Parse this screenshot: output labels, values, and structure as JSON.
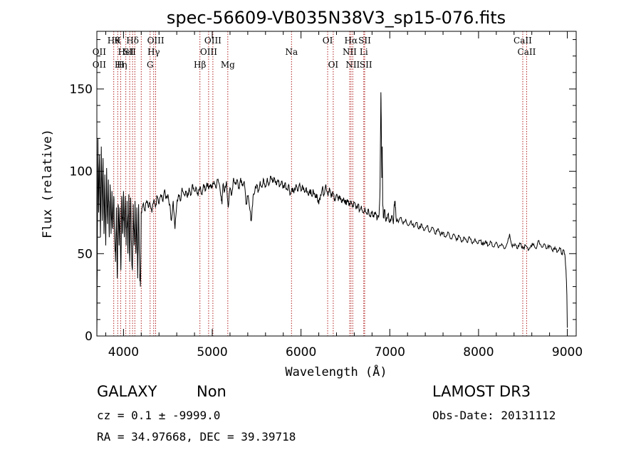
{
  "chart_data": {
    "type": "line",
    "title": "spec-56609-VB035N38V3_sp15-076.fits",
    "xlabel": "Wavelength (Å)",
    "ylabel": "Flux (relative)",
    "xlim": [
      3700,
      9100
    ],
    "ylim": [
      0,
      185
    ],
    "x_ticks": [
      4000,
      5000,
      6000,
      7000,
      8000,
      9000
    ],
    "y_ticks": [
      0,
      50,
      100,
      150
    ],
    "grid": false,
    "colors": {
      "spectrum": "#000000",
      "lines": "#b22222"
    },
    "spectrum_anchors": [
      [
        3700,
        0
      ],
      [
        3705,
        55
      ],
      [
        3712,
        120
      ],
      [
        3720,
        75
      ],
      [
        3730,
        110
      ],
      [
        3740,
        60
      ],
      [
        3750,
        115
      ],
      [
        3760,
        70
      ],
      [
        3770,
        108
      ],
      [
        3780,
        62
      ],
      [
        3790,
        98
      ],
      [
        3800,
        55
      ],
      [
        3810,
        102
      ],
      [
        3820,
        68
      ],
      [
        3830,
        95
      ],
      [
        3840,
        60
      ],
      [
        3850,
        92
      ],
      [
        3860,
        62
      ],
      [
        3870,
        88
      ],
      [
        3880,
        65
      ],
      [
        3890,
        85
      ],
      [
        3900,
        60
      ],
      [
        3910,
        45
      ],
      [
        3920,
        78
      ],
      [
        3930,
        35
      ],
      [
        3940,
        80
      ],
      [
        3950,
        55
      ],
      [
        3960,
        78
      ],
      [
        3970,
        40
      ],
      [
        3980,
        85
      ],
      [
        3990,
        62
      ],
      [
        4000,
        88
      ],
      [
        4010,
        60
      ],
      [
        4020,
        85
      ],
      [
        4030,
        55
      ],
      [
        4040,
        82
      ],
      [
        4050,
        50
      ],
      [
        4060,
        86
      ],
      [
        4070,
        45
      ],
      [
        4080,
        84
      ],
      [
        4090,
        55
      ],
      [
        4100,
        40
      ],
      [
        4110,
        80
      ],
      [
        4120,
        55
      ],
      [
        4130,
        82
      ],
      [
        4140,
        50
      ],
      [
        4150,
        78
      ],
      [
        4160,
        35
      ],
      [
        4170,
        80
      ],
      [
        4180,
        45
      ],
      [
        4190,
        30
      ],
      [
        4200,
        75
      ],
      [
        4210,
        78
      ],
      [
        4220,
        80
      ],
      [
        4240,
        76
      ],
      [
        4260,
        82
      ],
      [
        4280,
        78
      ],
      [
        4300,
        80
      ],
      [
        4320,
        75
      ],
      [
        4340,
        82
      ],
      [
        4360,
        78
      ],
      [
        4380,
        85
      ],
      [
        4400,
        80
      ],
      [
        4420,
        86
      ],
      [
        4440,
        82
      ],
      [
        4460,
        88
      ],
      [
        4480,
        84
      ],
      [
        4500,
        86
      ],
      [
        4520,
        80
      ],
      [
        4540,
        70
      ],
      [
        4560,
        82
      ],
      [
        4580,
        65
      ],
      [
        4600,
        80
      ],
      [
        4620,
        86
      ],
      [
        4640,
        82
      ],
      [
        4660,
        90
      ],
      [
        4680,
        86
      ],
      [
        4700,
        88
      ],
      [
        4720,
        84
      ],
      [
        4740,
        90
      ],
      [
        4760,
        86
      ],
      [
        4780,
        92
      ],
      [
        4800,
        88
      ],
      [
        4820,
        90
      ],
      [
        4840,
        85
      ],
      [
        4860,
        90
      ],
      [
        4880,
        86
      ],
      [
        4900,
        92
      ],
      [
        4920,
        88
      ],
      [
        4940,
        93
      ],
      [
        4960,
        89
      ],
      [
        4980,
        92
      ],
      [
        5000,
        90
      ],
      [
        5020,
        94
      ],
      [
        5040,
        90
      ],
      [
        5060,
        95
      ],
      [
        5080,
        92
      ],
      [
        5100,
        85
      ],
      [
        5110,
        80
      ],
      [
        5120,
        92
      ],
      [
        5140,
        88
      ],
      [
        5160,
        94
      ],
      [
        5180,
        78
      ],
      [
        5200,
        90
      ],
      [
        5220,
        86
      ],
      [
        5240,
        96
      ],
      [
        5260,
        92
      ],
      [
        5280,
        95
      ],
      [
        5300,
        90
      ],
      [
        5320,
        96
      ],
      [
        5340,
        92
      ],
      [
        5360,
        94
      ],
      [
        5380,
        80
      ],
      [
        5400,
        85
      ],
      [
        5420,
        78
      ],
      [
        5440,
        70
      ],
      [
        5460,
        85
      ],
      [
        5480,
        88
      ],
      [
        5500,
        92
      ],
      [
        5520,
        88
      ],
      [
        5540,
        94
      ],
      [
        5560,
        90
      ],
      [
        5580,
        95
      ],
      [
        5600,
        91
      ],
      [
        5620,
        96
      ],
      [
        5640,
        92
      ],
      [
        5660,
        97
      ],
      [
        5680,
        93
      ],
      [
        5700,
        96
      ],
      [
        5720,
        92
      ],
      [
        5740,
        95
      ],
      [
        5760,
        91
      ],
      [
        5780,
        94
      ],
      [
        5800,
        90
      ],
      [
        5820,
        93
      ],
      [
        5840,
        89
      ],
      [
        5860,
        92
      ],
      [
        5880,
        86
      ],
      [
        5900,
        90
      ],
      [
        5920,
        87
      ],
      [
        5940,
        91
      ],
      [
        5960,
        88
      ],
      [
        5980,
        92
      ],
      [
        6000,
        88
      ],
      [
        6020,
        91
      ],
      [
        6040,
        87
      ],
      [
        6060,
        90
      ],
      [
        6080,
        86
      ],
      [
        6100,
        89
      ],
      [
        6120,
        85
      ],
      [
        6140,
        88
      ],
      [
        6160,
        84
      ],
      [
        6180,
        86
      ],
      [
        6200,
        80
      ],
      [
        6220,
        86
      ],
      [
        6240,
        90
      ],
      [
        6260,
        86
      ],
      [
        6280,
        92
      ],
      [
        6300,
        86
      ],
      [
        6320,
        90
      ],
      [
        6340,
        84
      ],
      [
        6360,
        87
      ],
      [
        6380,
        83
      ],
      [
        6400,
        86
      ],
      [
        6420,
        82
      ],
      [
        6440,
        85
      ],
      [
        6460,
        81
      ],
      [
        6480,
        84
      ],
      [
        6500,
        80
      ],
      [
        6520,
        83
      ],
      [
        6540,
        79
      ],
      [
        6560,
        82
      ],
      [
        6580,
        78
      ],
      [
        6600,
        81
      ],
      [
        6620,
        77
      ],
      [
        6640,
        80
      ],
      [
        6660,
        76
      ],
      [
        6680,
        79
      ],
      [
        6700,
        75
      ],
      [
        6720,
        78
      ],
      [
        6740,
        74
      ],
      [
        6760,
        77
      ],
      [
        6780,
        73
      ],
      [
        6800,
        76
      ],
      [
        6820,
        72
      ],
      [
        6840,
        75
      ],
      [
        6860,
        71
      ],
      [
        6880,
        74
      ],
      [
        6890,
        90
      ],
      [
        6900,
        148
      ],
      [
        6905,
        125
      ],
      [
        6910,
        96
      ],
      [
        6915,
        115
      ],
      [
        6920,
        80
      ],
      [
        6930,
        72
      ],
      [
        6940,
        76
      ],
      [
        6960,
        70
      ],
      [
        6980,
        74
      ],
      [
        7000,
        69
      ],
      [
        7020,
        73
      ],
      [
        7040,
        68
      ],
      [
        7050,
        80
      ],
      [
        7060,
        82
      ],
      [
        7070,
        72
      ],
      [
        7090,
        70
      ],
      [
        7120,
        72
      ],
      [
        7150,
        68
      ],
      [
        7180,
        71
      ],
      [
        7210,
        67
      ],
      [
        7240,
        70
      ],
      [
        7270,
        66
      ],
      [
        7300,
        69
      ],
      [
        7330,
        65
      ],
      [
        7360,
        68
      ],
      [
        7390,
        64
      ],
      [
        7420,
        67
      ],
      [
        7450,
        63
      ],
      [
        7480,
        66
      ],
      [
        7510,
        62
      ],
      [
        7540,
        65
      ],
      [
        7570,
        61
      ],
      [
        7600,
        63
      ],
      [
        7630,
        60
      ],
      [
        7660,
        63
      ],
      [
        7690,
        59
      ],
      [
        7720,
        62
      ],
      [
        7750,
        58
      ],
      [
        7780,
        61
      ],
      [
        7810,
        57
      ],
      [
        7840,
        60
      ],
      [
        7870,
        57
      ],
      [
        7900,
        60
      ],
      [
        7930,
        56
      ],
      [
        7960,
        59
      ],
      [
        7990,
        56
      ],
      [
        8020,
        58
      ],
      [
        8050,
        55
      ],
      [
        8080,
        58
      ],
      [
        8110,
        55
      ],
      [
        8140,
        57
      ],
      [
        8170,
        54
      ],
      [
        8200,
        57
      ],
      [
        8230,
        54
      ],
      [
        8260,
        56
      ],
      [
        8290,
        53
      ],
      [
        8320,
        56
      ],
      [
        8350,
        62
      ],
      [
        8380,
        54
      ],
      [
        8410,
        56
      ],
      [
        8440,
        53
      ],
      [
        8470,
        56
      ],
      [
        8500,
        53
      ],
      [
        8530,
        55
      ],
      [
        8560,
        52
      ],
      [
        8590,
        55
      ],
      [
        8620,
        56
      ],
      [
        8650,
        53
      ],
      [
        8680,
        58
      ],
      [
        8710,
        54
      ],
      [
        8740,
        56
      ],
      [
        8770,
        53
      ],
      [
        8800,
        55
      ],
      [
        8830,
        52
      ],
      [
        8860,
        54
      ],
      [
        8890,
        51
      ],
      [
        8920,
        53
      ],
      [
        8940,
        50
      ],
      [
        8960,
        52
      ],
      [
        8975,
        48
      ],
      [
        8985,
        40
      ],
      [
        8995,
        25
      ],
      [
        9000,
        5
      ]
    ],
    "lines_of_interest": [
      {
        "x": 3727,
        "label": "OII",
        "row": 1
      },
      {
        "x": 3727,
        "label": "OII",
        "row": 2
      },
      {
        "x": 3889,
        "label": "Hθ",
        "row": 0
      },
      {
        "x": 3934,
        "label": "K",
        "row": 0
      },
      {
        "x": 3970,
        "label": "Hη",
        "row": 2
      },
      {
        "x": 3968,
        "label": "H",
        "row": 2
      },
      {
        "x": 4026,
        "label": "HeI",
        "row": 1
      },
      {
        "x": 4102,
        "label": "Hδ",
        "row": 0
      },
      {
        "x": 4069,
        "label": "SII",
        "row": 1
      },
      {
        "x": 4300,
        "label": "G",
        "row": 2
      },
      {
        "x": 4340,
        "label": "Hγ",
        "row": 1
      },
      {
        "x": 4363,
        "label": "OIII",
        "row": 0
      },
      {
        "x": 4861,
        "label": "Hβ",
        "row": 2
      },
      {
        "x": 4959,
        "label": "OIII",
        "row": 1
      },
      {
        "x": 5007,
        "label": "OIII",
        "row": 0
      },
      {
        "x": 5175,
        "label": "Mg",
        "row": 2
      },
      {
        "x": 5893,
        "label": "Na",
        "row": 1
      },
      {
        "x": 6300,
        "label": "OI",
        "row": 0
      },
      {
        "x": 6363,
        "label": "OI",
        "row": 2
      },
      {
        "x": 6548,
        "label": "NII",
        "row": 1
      },
      {
        "x": 6563,
        "label": "Hα",
        "row": 0
      },
      {
        "x": 6583,
        "label": "NII",
        "row": 2
      },
      {
        "x": 6707,
        "label": "Li",
        "row": 1
      },
      {
        "x": 6717,
        "label": "SII",
        "row": 0
      },
      {
        "x": 6731,
        "label": "SII",
        "row": 2
      },
      {
        "x": 8498,
        "label": "CaII",
        "row": 0
      },
      {
        "x": 8542,
        "label": "CaII",
        "row": 1
      }
    ],
    "vertical_marker_positions": [
      3890,
      3935,
      3968,
      4026,
      4070,
      4102,
      4128,
      4200,
      4300,
      4340,
      4362,
      4861,
      4959,
      5007,
      5175,
      5893,
      6300,
      6363,
      6548,
      6563,
      6583,
      6707,
      6717,
      8498,
      8542
    ]
  },
  "info": {
    "object_class": "GALAXY",
    "subclass": "Non",
    "survey": "LAMOST DR3",
    "cz_line": "cz = 0.1 ± -9999.0",
    "obs_date": "Obs-Date: 20131112",
    "coords": "RA =  34.97668, DEC =  39.39718"
  }
}
